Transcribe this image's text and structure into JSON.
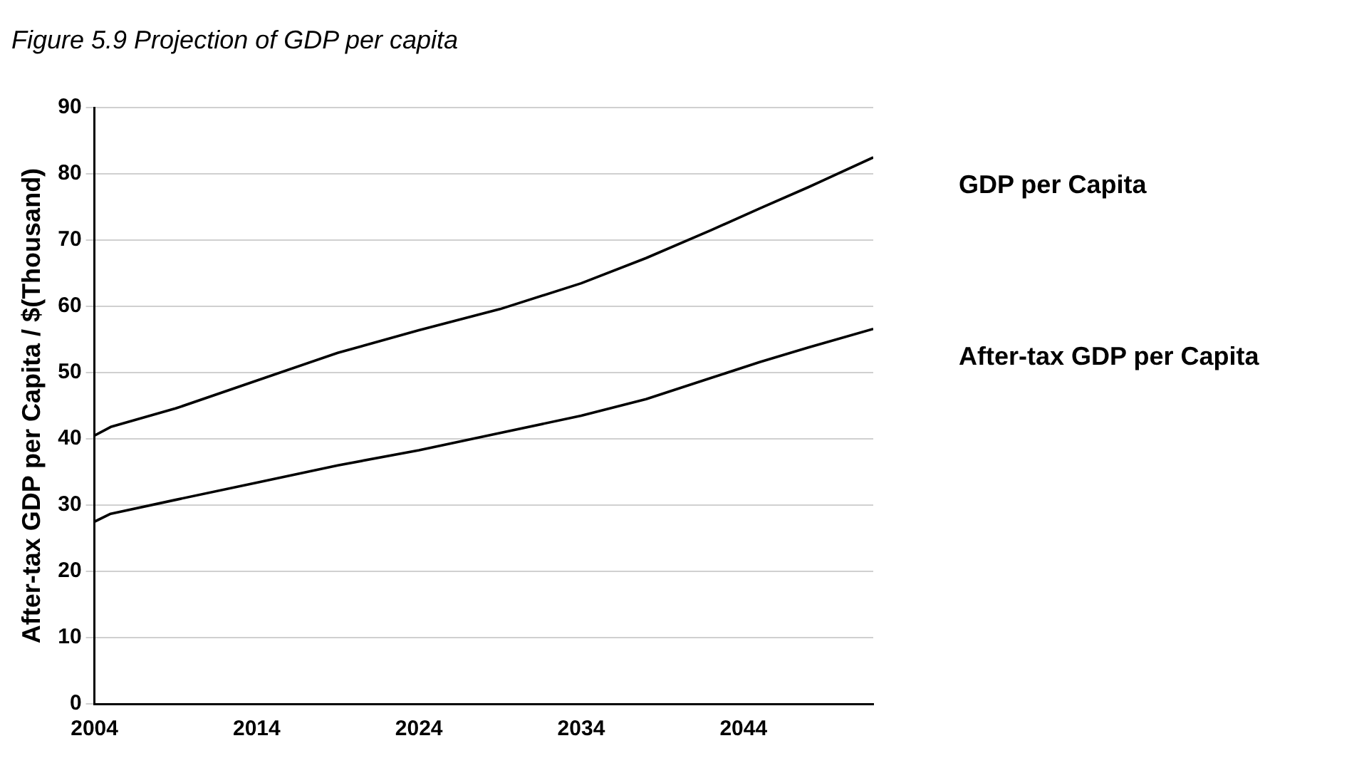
{
  "chart_data": {
    "type": "line",
    "title": "Figure 5.9 Projection of GDP per capita",
    "ylabel": "After-tax GDP per Capita / $(Thousand)",
    "xlim": [
      2004,
      2052
    ],
    "xticks": [
      2004,
      2014,
      2024,
      2034,
      2044
    ],
    "ylim": [
      0,
      90
    ],
    "yticks": [
      0,
      10,
      20,
      30,
      40,
      50,
      60,
      70,
      80,
      90
    ],
    "grid": "y",
    "legend": false,
    "series": [
      {
        "name": "GDP per Capita",
        "color": "#000000",
        "x": [
          2004,
          2005,
          2009,
          2014,
          2019,
          2024,
          2029,
          2034,
          2038,
          2042,
          2045,
          2048,
          2052
        ],
        "values": [
          40.5,
          41.8,
          44.6,
          48.8,
          53.0,
          56.4,
          59.6,
          63.5,
          67.3,
          71.5,
          74.8,
          78.0,
          82.5
        ]
      },
      {
        "name": "After-tax GDP per Capita",
        "color": "#000000",
        "x": [
          2004,
          2005,
          2009,
          2014,
          2019,
          2024,
          2029,
          2034,
          2038,
          2042,
          2045,
          2048,
          2052
        ],
        "values": [
          27.5,
          28.7,
          30.8,
          33.4,
          36.0,
          38.3,
          40.9,
          43.5,
          46.0,
          49.2,
          51.6,
          53.8,
          56.6
        ]
      }
    ]
  }
}
